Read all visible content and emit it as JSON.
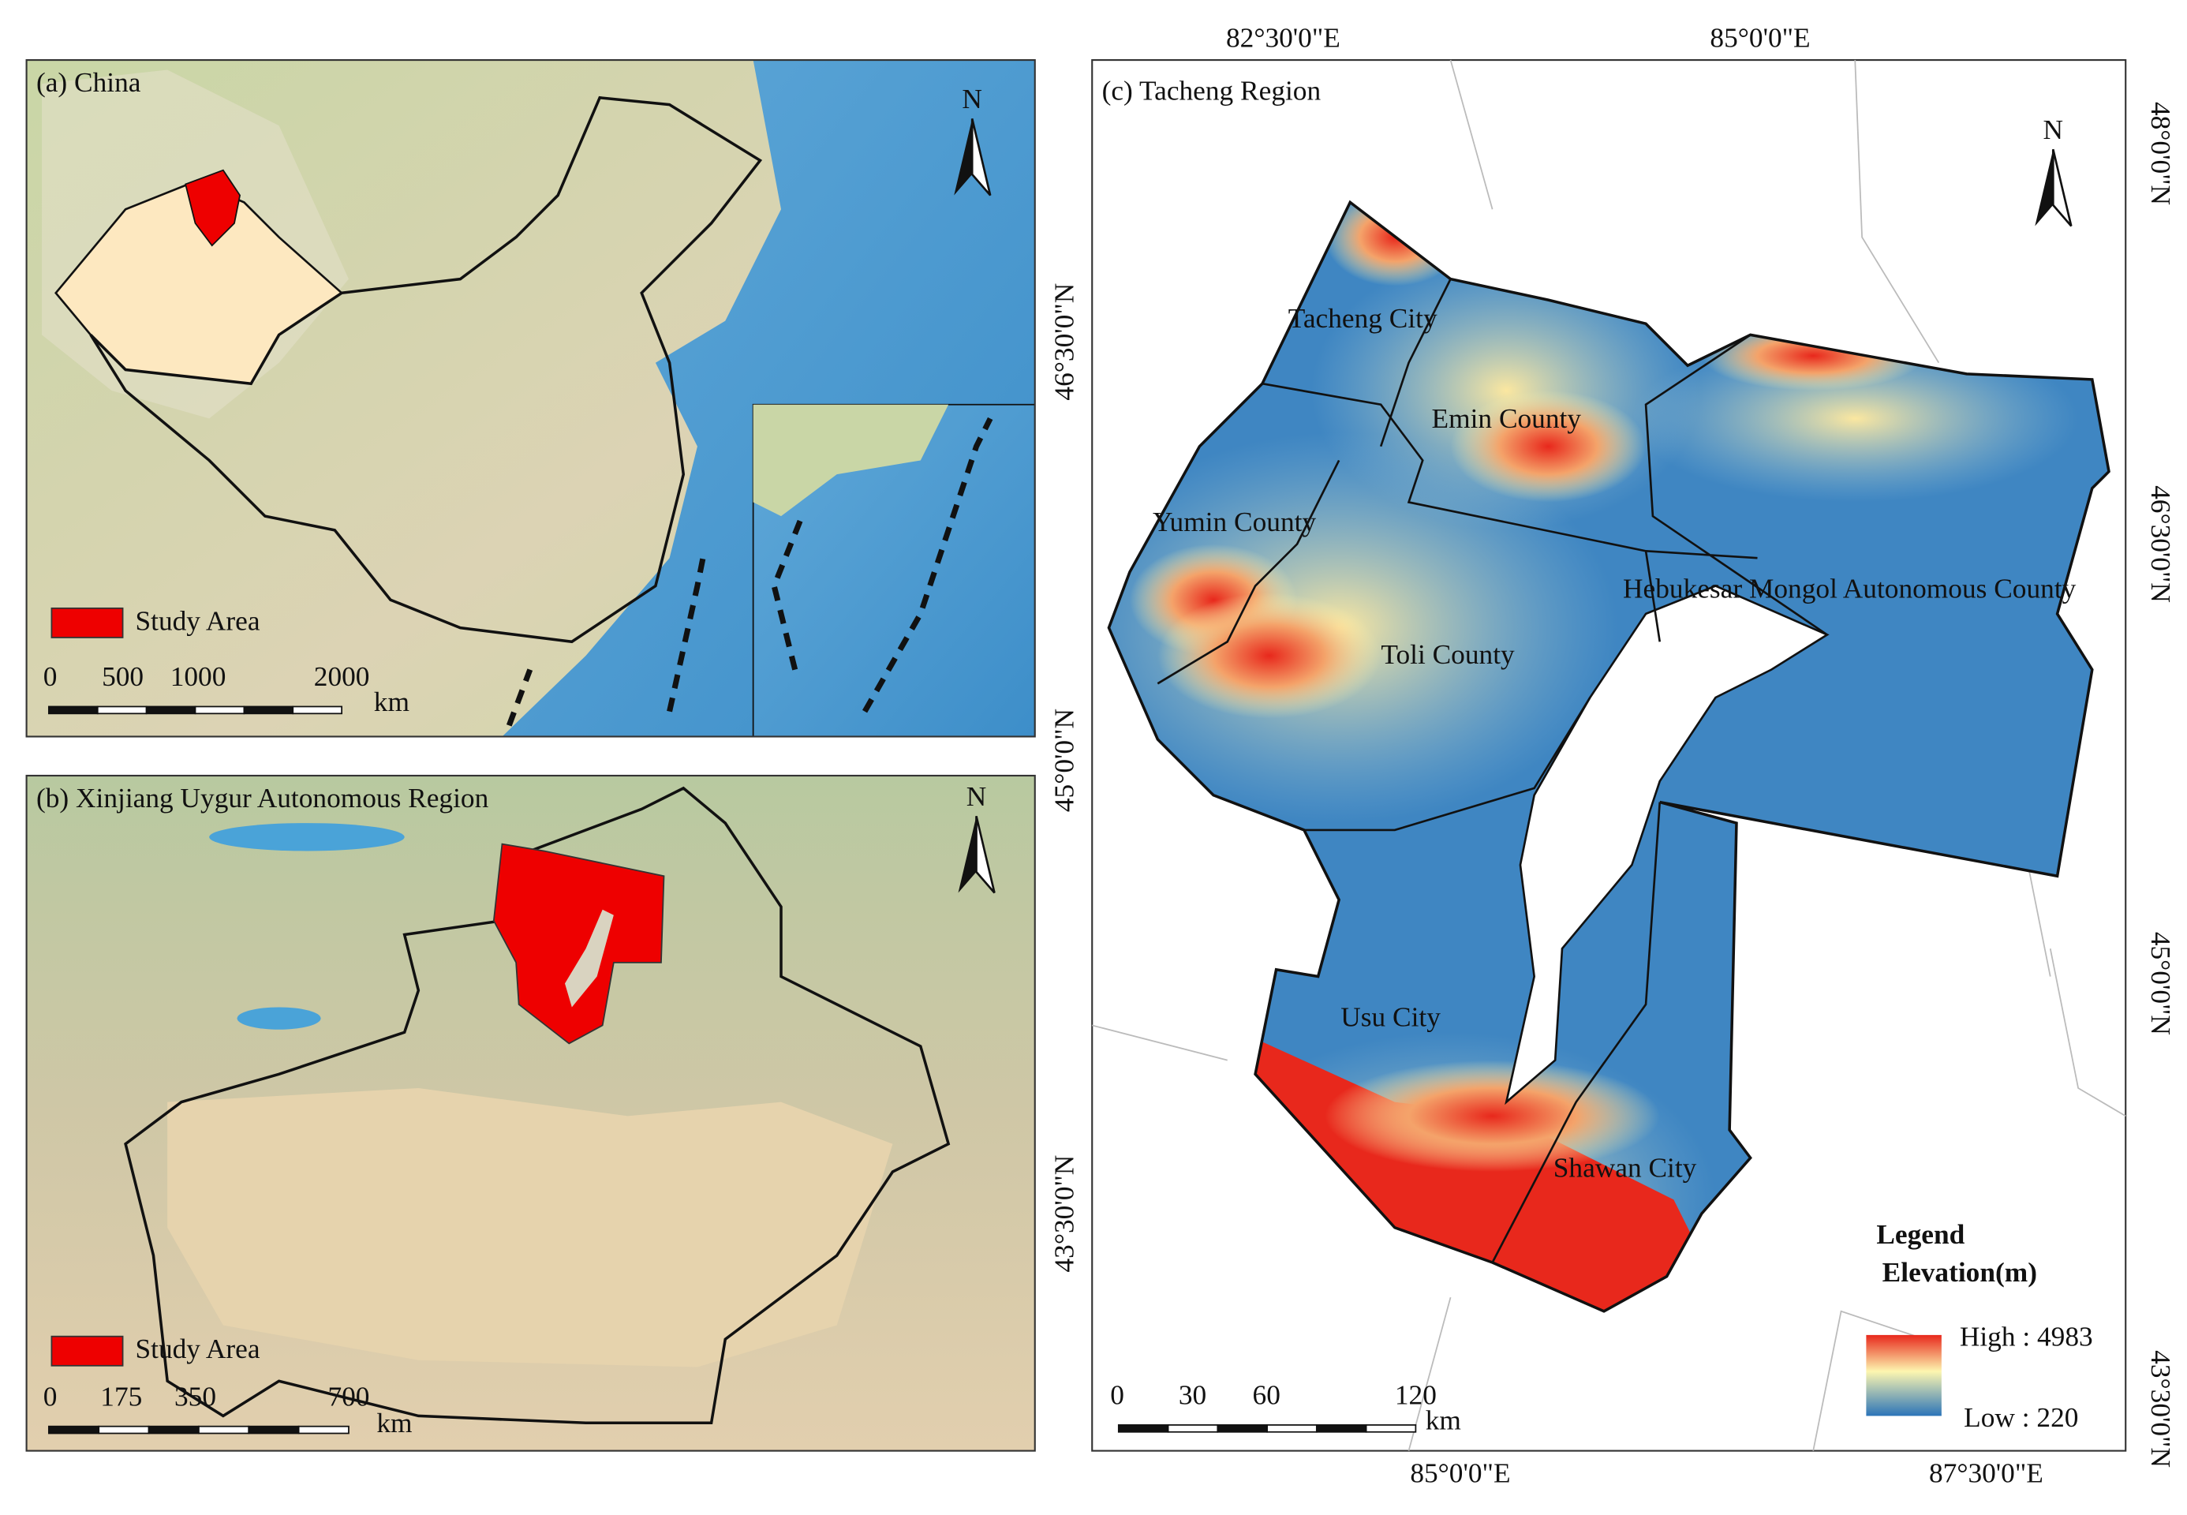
{
  "panels": [
    {
      "label": "(a) China",
      "north": "N",
      "legend": "Study Area",
      "scale": {
        "ticks": [
          "0",
          "500",
          "1000",
          "2000"
        ],
        "unit": "km"
      }
    },
    {
      "label": "(b) Xinjiang Uygur Autonomous Region",
      "north": "N",
      "legend": "Study Area",
      "scale": {
        "ticks": [
          "0",
          "175",
          "350",
          "700"
        ],
        "unit": "km"
      }
    },
    {
      "label": "(c) Tacheng Region",
      "north": "N",
      "top_ticks": [
        "82°30'0\"E",
        "85°0'0\"E"
      ],
      "bottom_ticks": [
        "85°0'0\"E",
        "87°30'0\"E"
      ],
      "right_ticks": [
        "48°0'0\"N",
        "46°30'0\"N",
        "45°0'0\"N",
        "43°30'0\"N"
      ],
      "left_ticks": [
        "46°30'0\"N",
        "45°0'0\"N",
        "43°30'0\"N"
      ],
      "regions": [
        "Tacheng City",
        "Emin County",
        "Yumin County",
        "Hebukesar Mongol Autonomous County",
        "Toli County",
        "Usu City",
        "Shawan City"
      ],
      "legend": {
        "title": "Legend",
        "subtitle": "Elevation(m)",
        "high": "High : 4983",
        "low": "Low : 220"
      },
      "scale": {
        "ticks": [
          "0",
          "30",
          "60",
          "120"
        ],
        "unit": "km"
      }
    }
  ]
}
